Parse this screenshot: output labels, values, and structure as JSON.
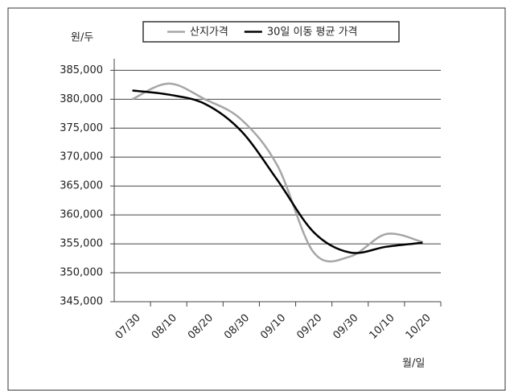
{
  "chart_data": {
    "type": "line",
    "y_unit": "원/두",
    "x_unit": "월/일",
    "categories": [
      "07/30",
      "08/10",
      "08/20",
      "08/30",
      "09/10",
      "09/20",
      "09/30",
      "10/10",
      "10/20"
    ],
    "series": [
      {
        "name": "산지가격",
        "color": "#a6a6a6",
        "values": [
          380000,
          382700,
          380000,
          376500,
          368500,
          353500,
          352800,
          356700,
          355300
        ]
      },
      {
        "name": "30일 이동 평균 가격",
        "color": "#000000",
        "values": [
          381500,
          380800,
          379200,
          374500,
          366000,
          357000,
          353500,
          354500,
          355200
        ]
      }
    ],
    "ylim": [
      345000,
      387000
    ],
    "yticks": [
      {
        "value": 345000,
        "label": "345,000"
      },
      {
        "value": 350000,
        "label": "350,000"
      },
      {
        "value": 355000,
        "label": "355,000"
      },
      {
        "value": 360000,
        "label": "360,000"
      },
      {
        "value": 365000,
        "label": "365,000"
      },
      {
        "value": 370000,
        "label": "370,000"
      },
      {
        "value": 375000,
        "label": "375,000"
      },
      {
        "value": 380000,
        "label": "380,000"
      },
      {
        "value": 385000,
        "label": "385,000"
      }
    ],
    "grid": true
  }
}
